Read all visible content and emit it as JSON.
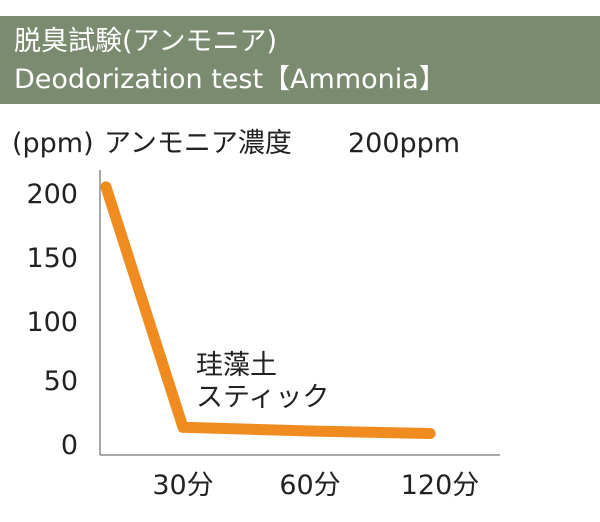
{
  "header": {
    "title_jp": "脱臭試験(アンモニア)",
    "title_en": "Deodorization test【Ammonia】",
    "bg_color": "#7a8b70"
  },
  "chart_meta": {
    "unit_label": "(ppm)",
    "concentration_label": "アンモニア濃度",
    "concentration_value": "200ppm"
  },
  "chart_data": {
    "type": "line",
    "categories": [
      "",
      "30分",
      "60分",
      "120分"
    ],
    "yticks": [
      "200",
      "150",
      "100",
      "50",
      "0"
    ],
    "ylim": [
      0,
      200
    ],
    "series": [
      {
        "name": "珪藻土スティック",
        "name_lines": [
          "珪藻土",
          "スティック"
        ],
        "color": "#f08b1f",
        "values": [
          200,
          7,
          4,
          2
        ]
      }
    ],
    "grid": false,
    "legend": "inline annotation"
  }
}
